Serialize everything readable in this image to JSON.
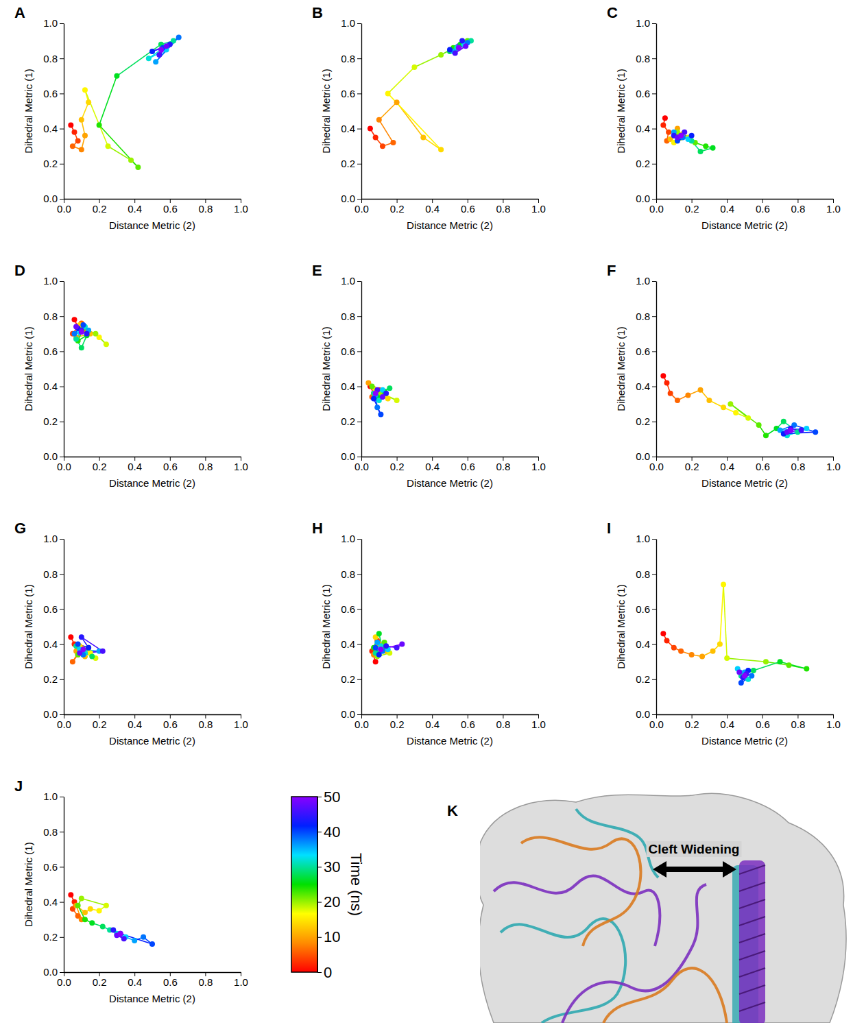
{
  "chart_data": [
    {
      "type": "line",
      "title": "A",
      "x_label": "Distance Metric (2)",
      "y_label": "Dihedral Metric (1)",
      "xlim": [
        0,
        1
      ],
      "ylim": [
        0,
        1
      ],
      "xticks": [
        {
          "value": 0,
          "label": "0.0"
        },
        0.2,
        0.4,
        0.6,
        0.8,
        {
          "value": 1,
          "label": "1.0"
        }
      ],
      "yticks": [
        {
          "value": 0,
          "label": "0.0"
        },
        0.2,
        0.4,
        0.6,
        0.8,
        {
          "value": 1,
          "label": "1.0"
        }
      ],
      "x": [
        0.04,
        0.06,
        0.08,
        0.05,
        0.1,
        0.12,
        0.1,
        0.14,
        0.12,
        0.25,
        0.38,
        0.42,
        0.2,
        0.3,
        0.55,
        0.62,
        0.48,
        0.58,
        0.52,
        0.65,
        0.56,
        0.5,
        0.6,
        0.54,
        0.58,
        0.55
      ],
      "values": [
        0.42,
        0.38,
        0.33,
        0.3,
        0.28,
        0.36,
        0.45,
        0.55,
        0.62,
        0.3,
        0.22,
        0.18,
        0.42,
        0.7,
        0.88,
        0.9,
        0.8,
        0.85,
        0.78,
        0.92,
        0.86,
        0.84,
        0.88,
        0.82,
        0.87,
        0.85
      ],
      "time": [
        0,
        2,
        4,
        6,
        8,
        10,
        12,
        14,
        16,
        18,
        20,
        22,
        24,
        26,
        28,
        30,
        32,
        34,
        36,
        38,
        40,
        42,
        44,
        46,
        48,
        50
      ]
    },
    {
      "type": "line",
      "title": "B",
      "x_label": "Distance Metric (2)",
      "y_label": "Dihedral Metric (1)",
      "xlim": [
        0,
        1
      ],
      "ylim": [
        0,
        1
      ],
      "xticks": [
        {
          "value": 0,
          "label": "0.0"
        },
        0.2,
        0.4,
        0.6,
        0.8,
        {
          "value": 1,
          "label": "1.0"
        }
      ],
      "yticks": [
        {
          "value": 0,
          "label": "0.0"
        },
        0.2,
        0.4,
        0.6,
        0.8,
        {
          "value": 1,
          "label": "1.0"
        }
      ],
      "x": [
        0.05,
        0.08,
        0.12,
        0.18,
        0.1,
        0.2,
        0.35,
        0.45,
        0.15,
        0.3,
        0.45,
        0.6,
        0.52,
        0.56,
        0.5,
        0.62,
        0.54,
        0.58,
        0.52,
        0.6,
        0.55,
        0.5,
        0.57,
        0.53,
        0.59,
        0.55
      ],
      "values": [
        0.4,
        0.35,
        0.3,
        0.32,
        0.45,
        0.55,
        0.35,
        0.28,
        0.6,
        0.75,
        0.82,
        0.9,
        0.86,
        0.88,
        0.84,
        0.9,
        0.86,
        0.88,
        0.84,
        0.89,
        0.86,
        0.85,
        0.9,
        0.83,
        0.87,
        0.86
      ],
      "time": [
        0,
        2,
        4,
        6,
        8,
        10,
        12,
        14,
        16,
        18,
        20,
        22,
        24,
        26,
        28,
        30,
        32,
        34,
        36,
        38,
        40,
        42,
        44,
        46,
        48,
        50
      ]
    },
    {
      "type": "line",
      "title": "C",
      "x_label": "Distance Metric (2)",
      "y_label": "Dihedral Metric (1)",
      "xlim": [
        0,
        1
      ],
      "ylim": [
        0,
        1
      ],
      "xticks": [
        {
          "value": 0,
          "label": "0.0"
        },
        0.2,
        0.4,
        0.6,
        0.8,
        {
          "value": 1,
          "label": "1.0"
        }
      ],
      "yticks": [
        {
          "value": 0,
          "label": "0.0"
        },
        0.2,
        0.4,
        0.6,
        0.8,
        {
          "value": 1,
          "label": "1.0"
        }
      ],
      "x": [
        0.05,
        0.04,
        0.07,
        0.06,
        0.1,
        0.12,
        0.08,
        0.15,
        0.1,
        0.18,
        0.12,
        0.22,
        0.28,
        0.32,
        0.25,
        0.2,
        0.14,
        0.18,
        0.1,
        0.15,
        0.12,
        0.2,
        0.1,
        0.16,
        0.12,
        0.14
      ],
      "values": [
        0.46,
        0.42,
        0.38,
        0.33,
        0.36,
        0.4,
        0.34,
        0.37,
        0.32,
        0.35,
        0.38,
        0.32,
        0.3,
        0.29,
        0.27,
        0.33,
        0.36,
        0.34,
        0.38,
        0.35,
        0.33,
        0.36,
        0.36,
        0.38,
        0.35,
        0.36
      ],
      "time": [
        0,
        2,
        4,
        6,
        8,
        10,
        12,
        14,
        16,
        18,
        20,
        22,
        24,
        26,
        28,
        30,
        32,
        34,
        36,
        38,
        40,
        42,
        44,
        46,
        48,
        50
      ]
    },
    {
      "type": "line",
      "title": "D",
      "x_label": "Distance Metric (2)",
      "y_label": "Dihedral Metric (1)",
      "xlim": [
        0,
        1
      ],
      "ylim": [
        0,
        1
      ],
      "xticks": [
        {
          "value": 0,
          "label": "0.0"
        },
        0.2,
        0.4,
        0.6,
        0.8,
        {
          "value": 1,
          "label": "1.0"
        }
      ],
      "yticks": [
        {
          "value": 0,
          "label": "0.0"
        },
        0.2,
        0.4,
        0.6,
        0.8,
        {
          "value": 1,
          "label": "1.0"
        }
      ],
      "x": [
        0.06,
        0.08,
        0.05,
        0.1,
        0.12,
        0.07,
        0.15,
        0.09,
        0.2,
        0.24,
        0.18,
        0.11,
        0.08,
        0.13,
        0.1,
        0.07,
        0.12,
        0.09,
        0.14,
        0.06,
        0.11,
        0.08,
        0.13,
        0.1,
        0.07,
        0.1
      ],
      "values": [
        0.78,
        0.74,
        0.7,
        0.76,
        0.72,
        0.68,
        0.7,
        0.75,
        0.68,
        0.64,
        0.7,
        0.73,
        0.66,
        0.69,
        0.62,
        0.67,
        0.74,
        0.71,
        0.72,
        0.7,
        0.75,
        0.73,
        0.7,
        0.72,
        0.74,
        0.71
      ],
      "time": [
        0,
        2,
        4,
        6,
        8,
        10,
        12,
        14,
        16,
        18,
        20,
        22,
        24,
        26,
        28,
        30,
        32,
        34,
        36,
        38,
        40,
        42,
        44,
        46,
        48,
        50
      ]
    },
    {
      "type": "line",
      "title": "E",
      "x_label": "Distance Metric (2)",
      "y_label": "Dihedral Metric (1)",
      "xlim": [
        0,
        1
      ],
      "ylim": [
        0,
        1
      ],
      "xticks": [
        {
          "value": 0,
          "label": "0.0"
        },
        0.2,
        0.4,
        0.6,
        0.8,
        {
          "value": 1,
          "label": "1.0"
        }
      ],
      "yticks": [
        {
          "value": 0,
          "label": "0.0"
        },
        0.2,
        0.4,
        0.6,
        0.8,
        {
          "value": 1,
          "label": "1.0"
        }
      ],
      "x": [
        0.05,
        0.07,
        0.1,
        0.06,
        0.12,
        0.04,
        0.09,
        0.15,
        0.08,
        0.2,
        0.11,
        0.06,
        0.13,
        0.09,
        0.16,
        0.07,
        0.1,
        0.12,
        0.08,
        0.09,
        0.11,
        0.07,
        0.14,
        0.09,
        0.12,
        0.08
      ],
      "values": [
        0.4,
        0.36,
        0.38,
        0.34,
        0.37,
        0.42,
        0.35,
        0.33,
        0.38,
        0.32,
        0.36,
        0.4,
        0.37,
        0.34,
        0.39,
        0.36,
        0.32,
        0.38,
        0.35,
        0.28,
        0.24,
        0.33,
        0.36,
        0.38,
        0.34,
        0.36
      ],
      "time": [
        0,
        2,
        4,
        6,
        8,
        10,
        12,
        14,
        16,
        18,
        20,
        22,
        24,
        26,
        28,
        30,
        32,
        34,
        36,
        38,
        40,
        42,
        44,
        46,
        48,
        50
      ]
    },
    {
      "type": "line",
      "title": "F",
      "x_label": "Distance Metric (2)",
      "y_label": "Dihedral Metric (1)",
      "xlim": [
        0,
        1
      ],
      "ylim": [
        0,
        1
      ],
      "xticks": [
        {
          "value": 0,
          "label": "0.0"
        },
        0.2,
        0.4,
        0.6,
        0.8,
        {
          "value": 1,
          "label": "1.0"
        }
      ],
      "yticks": [
        {
          "value": 0,
          "label": "0.0"
        },
        0.2,
        0.4,
        0.6,
        0.8,
        {
          "value": 1,
          "label": "1.0"
        }
      ],
      "x": [
        0.04,
        0.06,
        0.08,
        0.12,
        0.18,
        0.25,
        0.3,
        0.38,
        0.45,
        0.52,
        0.42,
        0.58,
        0.62,
        0.68,
        0.72,
        0.8,
        0.74,
        0.85,
        0.7,
        0.78,
        0.9,
        0.72,
        0.76,
        0.82,
        0.74,
        0.76
      ],
      "values": [
        0.46,
        0.42,
        0.36,
        0.32,
        0.35,
        0.38,
        0.32,
        0.28,
        0.25,
        0.22,
        0.3,
        0.18,
        0.12,
        0.16,
        0.2,
        0.14,
        0.12,
        0.16,
        0.15,
        0.18,
        0.14,
        0.13,
        0.16,
        0.15,
        0.14,
        0.15
      ],
      "time": [
        0,
        2,
        4,
        6,
        8,
        10,
        12,
        14,
        16,
        18,
        20,
        22,
        24,
        26,
        28,
        30,
        32,
        34,
        36,
        38,
        40,
        42,
        44,
        46,
        48,
        50
      ]
    },
    {
      "type": "line",
      "title": "G",
      "x_label": "Distance Metric (2)",
      "y_label": "Dihedral Metric (1)",
      "xlim": [
        0,
        1
      ],
      "ylim": [
        0,
        1
      ],
      "xticks": [
        {
          "value": 0,
          "label": "0.0"
        },
        0.2,
        0.4,
        0.6,
        0.8,
        {
          "value": 1,
          "label": "1.0"
        }
      ],
      "yticks": [
        {
          "value": 0,
          "label": "0.0"
        },
        0.2,
        0.4,
        0.6,
        0.8,
        {
          "value": 1,
          "label": "1.0"
        }
      ],
      "x": [
        0.04,
        0.06,
        0.08,
        0.05,
        0.1,
        0.07,
        0.12,
        0.09,
        0.15,
        0.18,
        0.11,
        0.08,
        0.14,
        0.1,
        0.16,
        0.07,
        0.12,
        0.09,
        0.2,
        0.11,
        0.08,
        0.14,
        0.1,
        0.22,
        0.09,
        0.11
      ],
      "values": [
        0.44,
        0.4,
        0.34,
        0.3,
        0.38,
        0.36,
        0.33,
        0.39,
        0.35,
        0.32,
        0.37,
        0.34,
        0.38,
        0.36,
        0.33,
        0.39,
        0.35,
        0.37,
        0.36,
        0.34,
        0.4,
        0.38,
        0.44,
        0.36,
        0.35,
        0.37
      ],
      "time": [
        0,
        2,
        4,
        6,
        8,
        10,
        12,
        14,
        16,
        18,
        20,
        22,
        24,
        26,
        28,
        30,
        32,
        34,
        36,
        38,
        40,
        42,
        44,
        46,
        48,
        50
      ]
    },
    {
      "type": "line",
      "title": "H",
      "x_label": "Distance Metric (2)",
      "y_label": "Dihedral Metric (1)",
      "xlim": [
        0,
        1
      ],
      "ylim": [
        0,
        1
      ],
      "xticks": [
        {
          "value": 0,
          "label": "0.0"
        },
        0.2,
        0.4,
        0.6,
        0.8,
        {
          "value": 1,
          "label": "1.0"
        }
      ],
      "yticks": [
        {
          "value": 0,
          "label": "0.0"
        },
        0.2,
        0.4,
        0.6,
        0.8,
        {
          "value": 1,
          "label": "1.0"
        }
      ],
      "x": [
        0.08,
        0.06,
        0.09,
        0.12,
        0.07,
        0.1,
        0.14,
        0.08,
        0.11,
        0.16,
        0.09,
        0.13,
        0.07,
        0.1,
        0.12,
        0.08,
        0.11,
        0.15,
        0.09,
        0.12,
        0.08,
        0.1,
        0.14,
        0.2,
        0.23,
        0.11
      ],
      "values": [
        0.3,
        0.36,
        0.42,
        0.38,
        0.34,
        0.4,
        0.36,
        0.44,
        0.38,
        0.35,
        0.33,
        0.41,
        0.38,
        0.46,
        0.37,
        0.35,
        0.39,
        0.37,
        0.41,
        0.36,
        0.38,
        0.34,
        0.39,
        0.38,
        0.4,
        0.37
      ],
      "time": [
        0,
        2,
        4,
        6,
        8,
        10,
        12,
        14,
        16,
        18,
        20,
        22,
        24,
        26,
        28,
        30,
        32,
        34,
        36,
        38,
        40,
        42,
        44,
        46,
        48,
        50
      ]
    },
    {
      "type": "line",
      "title": "I",
      "x_label": "Distance Metric (2)",
      "y_label": "Dihedral Metric (1)",
      "xlim": [
        0,
        1
      ],
      "ylim": [
        0,
        1
      ],
      "xticks": [
        {
          "value": 0,
          "label": "0.0"
        },
        0.2,
        0.4,
        0.6,
        0.8,
        {
          "value": 1,
          "label": "1.0"
        }
      ],
      "yticks": [
        {
          "value": 0,
          "label": "0.0"
        },
        0.2,
        0.4,
        0.6,
        0.8,
        {
          "value": 1,
          "label": "1.0"
        }
      ],
      "x": [
        0.04,
        0.06,
        0.1,
        0.14,
        0.2,
        0.26,
        0.32,
        0.36,
        0.38,
        0.4,
        0.62,
        0.75,
        0.85,
        0.7,
        0.55,
        0.48,
        0.52,
        0.46,
        0.5,
        0.54,
        0.48,
        0.52,
        0.49,
        0.51,
        0.47,
        0.5
      ],
      "values": [
        0.46,
        0.42,
        0.38,
        0.36,
        0.34,
        0.33,
        0.36,
        0.4,
        0.74,
        0.32,
        0.3,
        0.28,
        0.26,
        0.3,
        0.25,
        0.22,
        0.2,
        0.26,
        0.24,
        0.22,
        0.18,
        0.25,
        0.21,
        0.23,
        0.24,
        0.22
      ],
      "time": [
        0,
        2,
        4,
        6,
        8,
        10,
        12,
        14,
        16,
        18,
        20,
        22,
        24,
        26,
        28,
        30,
        32,
        34,
        36,
        38,
        40,
        42,
        44,
        46,
        48,
        50
      ]
    },
    {
      "type": "line",
      "title": "J",
      "x_label": "Distance Metric (2)",
      "y_label": "Dihedral Metric (1)",
      "xlim": [
        0,
        1
      ],
      "ylim": [
        0,
        1
      ],
      "xticks": [
        {
          "value": 0,
          "label": "0.0"
        },
        0.2,
        0.4,
        0.6,
        0.8,
        {
          "value": 1,
          "label": "1.0"
        }
      ],
      "yticks": [
        {
          "value": 0,
          "label": "0.0"
        },
        0.2,
        0.4,
        0.6,
        0.8,
        {
          "value": 1,
          "label": "1.0"
        }
      ],
      "x": [
        0.04,
        0.06,
        0.05,
        0.08,
        0.1,
        0.07,
        0.12,
        0.15,
        0.2,
        0.24,
        0.1,
        0.08,
        0.12,
        0.16,
        0.22,
        0.26,
        0.3,
        0.35,
        0.4,
        0.45,
        0.5,
        0.32,
        0.28,
        0.34,
        0.3,
        0.32
      ],
      "values": [
        0.44,
        0.4,
        0.36,
        0.32,
        0.3,
        0.38,
        0.34,
        0.36,
        0.35,
        0.38,
        0.42,
        0.38,
        0.3,
        0.28,
        0.26,
        0.24,
        0.22,
        0.2,
        0.18,
        0.2,
        0.16,
        0.22,
        0.24,
        0.19,
        0.21,
        0.22
      ],
      "time": [
        0,
        2,
        4,
        6,
        8,
        10,
        12,
        14,
        16,
        18,
        20,
        22,
        24,
        26,
        28,
        30,
        32,
        34,
        36,
        38,
        40,
        42,
        44,
        46,
        48,
        50
      ]
    },
    {
      "type": "colorbar",
      "title": "Time (ns)",
      "ylim": [
        0,
        50
      ],
      "yticks": [
        0,
        10,
        20,
        30,
        40,
        50
      ],
      "colors": [
        "#ff0000",
        "#ff8c00",
        "#ffff00",
        "#00e000",
        "#00e0ff",
        "#0020ff",
        "#8a00ff"
      ]
    },
    {
      "type": "image",
      "title": "K",
      "annotations": [
        "Cleft Widening"
      ]
    }
  ]
}
